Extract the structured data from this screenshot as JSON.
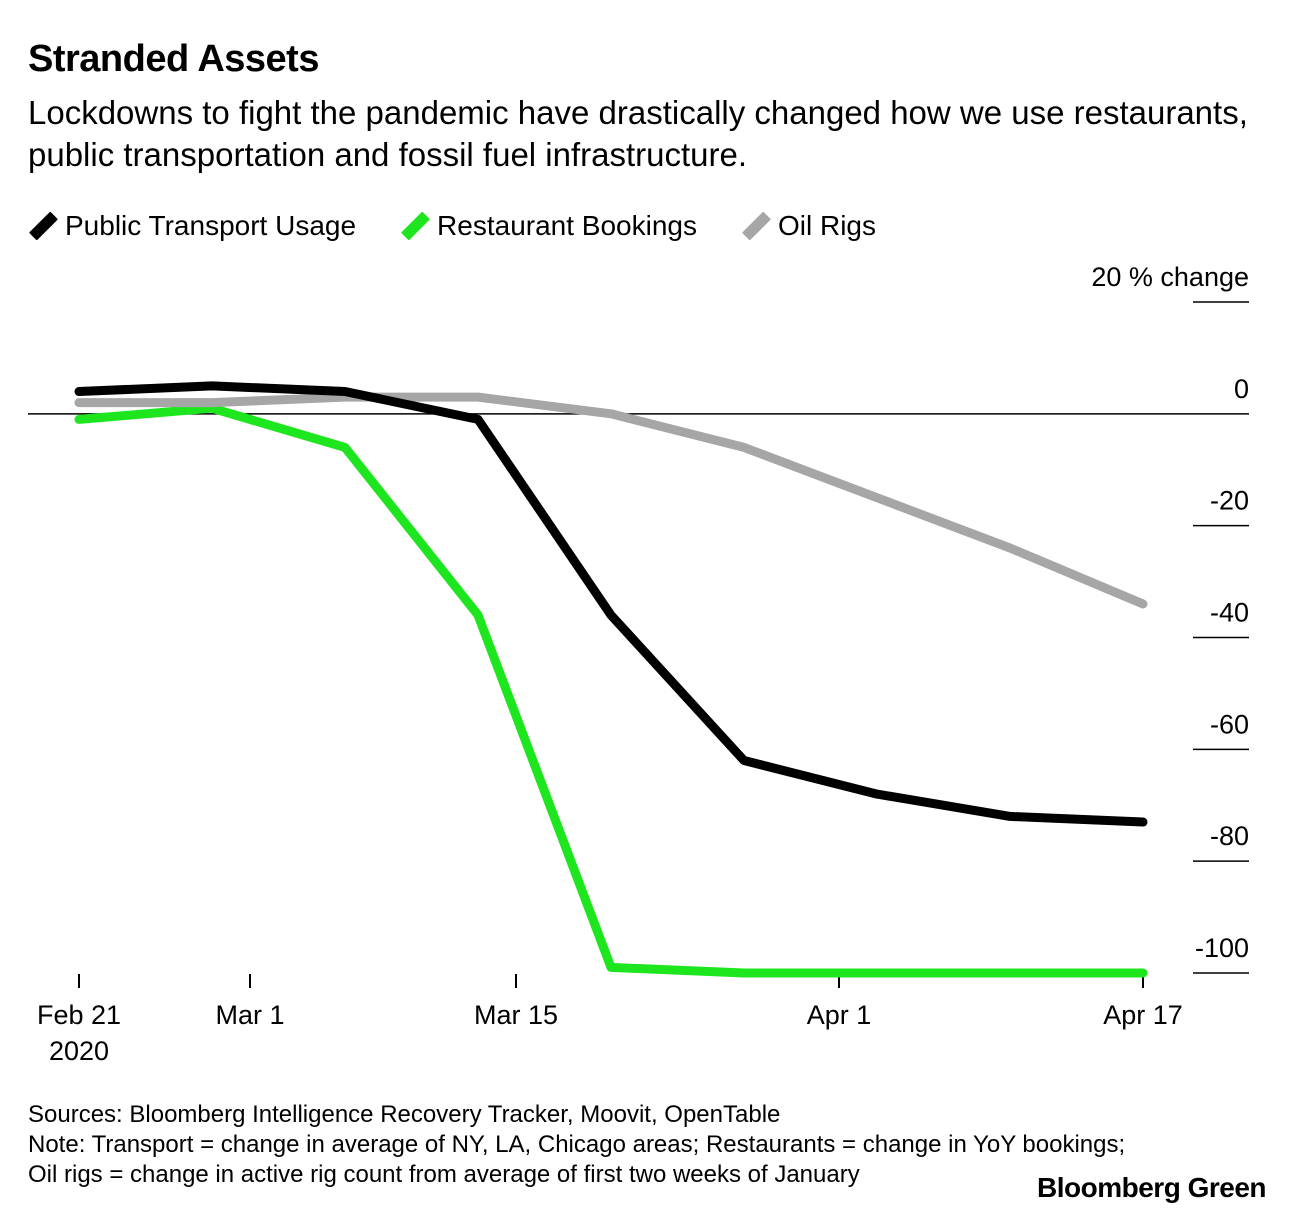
{
  "header": {
    "title": "Stranded Assets",
    "subtitle": "Lockdowns to fight the pandemic have drastically changed how we use restaurants, public transportation and fossil fuel infrastructure."
  },
  "legend": [
    {
      "label": "Public Transport Usage",
      "color": "#000000"
    },
    {
      "label": "Restaurant Bookings",
      "color": "#1ee61e"
    },
    {
      "label": "Oil Rigs",
      "color": "#a6a6a6"
    }
  ],
  "footer": {
    "sources": "Sources: Bloomberg Intelligence Recovery Tracker, Moovit, OpenTable",
    "note1": "Note: Transport = change in average of NY, LA, Chicago areas; Restaurants = change in YoY bookings;",
    "note2": "Oil rigs = change in active rig count from average of first two weeks of January",
    "brand": "Bloomberg Green"
  },
  "chart_data": {
    "type": "line",
    "ylabel": "% change",
    "ylim": [
      -100,
      20
    ],
    "yticks": [
      20,
      0,
      -20,
      -40,
      -60,
      -80,
      -100
    ],
    "xlim": [
      "2020-02-21",
      "2020-04-17"
    ],
    "xticks": [
      {
        "date": "2020-02-21",
        "label": "Feb 21",
        "sublabel": "2020"
      },
      {
        "date": "2020-03-01",
        "label": "Mar 1"
      },
      {
        "date": "2020-03-15",
        "label": "Mar 15"
      },
      {
        "date": "2020-04-01",
        "label": "Apr 1"
      },
      {
        "date": "2020-04-17",
        "label": "Apr 17"
      }
    ],
    "grid": false,
    "legend_position": "top-left",
    "series": [
      {
        "name": "Public Transport Usage",
        "color": "#000000",
        "points": [
          [
            "2020-02-21",
            4
          ],
          [
            "2020-02-28",
            5
          ],
          [
            "2020-03-06",
            4
          ],
          [
            "2020-03-13",
            -1
          ],
          [
            "2020-03-20",
            -36
          ],
          [
            "2020-03-27",
            -62
          ],
          [
            "2020-04-03",
            -68
          ],
          [
            "2020-04-10",
            -72
          ],
          [
            "2020-04-17",
            -73
          ]
        ]
      },
      {
        "name": "Restaurant Bookings",
        "color": "#1ee61e",
        "points": [
          [
            "2020-02-21",
            -1
          ],
          [
            "2020-02-28",
            1
          ],
          [
            "2020-03-06",
            -6
          ],
          [
            "2020-03-13",
            -36
          ],
          [
            "2020-03-20",
            -99
          ],
          [
            "2020-03-27",
            -100
          ],
          [
            "2020-04-03",
            -100
          ],
          [
            "2020-04-10",
            -100
          ],
          [
            "2020-04-17",
            -100
          ]
        ]
      },
      {
        "name": "Oil Rigs",
        "color": "#a6a6a6",
        "points": [
          [
            "2020-02-21",
            2
          ],
          [
            "2020-02-28",
            2
          ],
          [
            "2020-03-06",
            3
          ],
          [
            "2020-03-13",
            3
          ],
          [
            "2020-03-20",
            0
          ],
          [
            "2020-03-27",
            -6
          ],
          [
            "2020-04-03",
            -15
          ],
          [
            "2020-04-10",
            -24
          ],
          [
            "2020-04-17",
            -34
          ]
        ]
      }
    ]
  }
}
